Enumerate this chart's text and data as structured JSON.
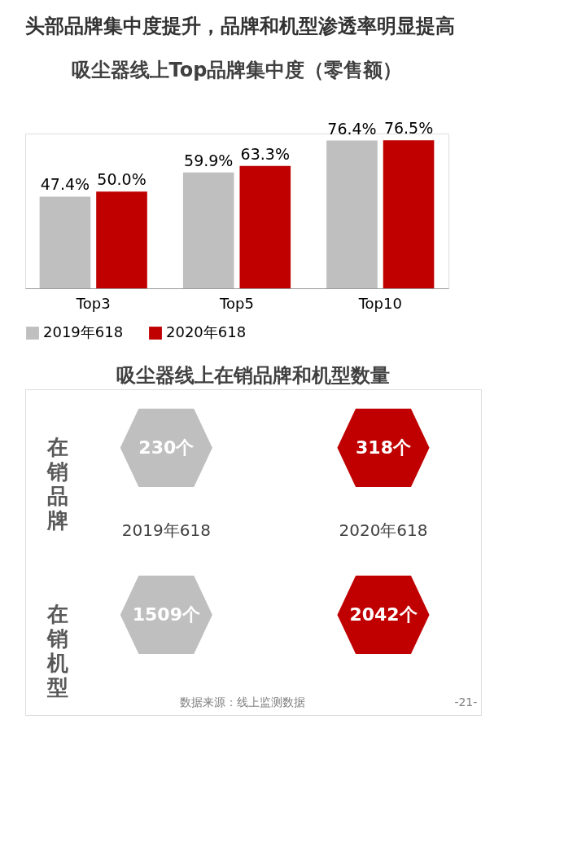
{
  "chart_data": [
    {
      "type": "bar",
      "title": "头部品牌集中度提升，品牌和机型渗透率明显提高",
      "subtitle": "吸尘器线上Top品牌集中度（零售额）",
      "categories": [
        "Top3",
        "Top5",
        "Top10"
      ],
      "legend": "bottom",
      "series": [
        {
          "name": "2019年618",
          "color": "#bfbfbf",
          "values": [
            47.4,
            59.9,
            76.4
          ],
          "value_labels": [
            "47.4%",
            "59.9%",
            "76.4%"
          ]
        },
        {
          "name": "2020年618",
          "color": "#c00000",
          "values": [
            50.0,
            63.3,
            76.5
          ],
          "value_labels": [
            "50.0%",
            "63.3%",
            "76.5%"
          ]
        }
      ]
    },
    {
      "type": "other",
      "title": "吸尘器线上在销品牌和机型数量",
      "categories": [
        "2019年618",
        "2020年618"
      ],
      "series": [
        {
          "name": "在销品牌",
          "colors": [
            "#bfbfbf",
            "#c00000"
          ],
          "values": [
            230,
            318
          ],
          "value_labels": [
            "230个",
            "318个"
          ]
        },
        {
          "name": "在销机型",
          "colors": [
            "#bfbfbf",
            "#c00000"
          ],
          "values": [
            1509,
            2042
          ],
          "value_labels": [
            "1509个",
            "2042个"
          ]
        }
      ],
      "annotations": [
        "数据来源：线上监测数据",
        "-21-"
      ]
    }
  ]
}
